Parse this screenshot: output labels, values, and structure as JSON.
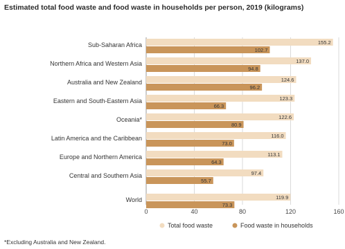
{
  "title": "Estimated total food waste and food waste in households per person, 2019 (kilograms)",
  "footnote": "*Excluding Australia and New Zealand.",
  "colors": {
    "total": "#f2dcc0",
    "household": "#c9955a"
  },
  "chart_data": {
    "type": "bar",
    "orientation": "horizontal",
    "title": "Estimated total food waste and food waste in households per person, 2019 (kilograms)",
    "xlabel": "",
    "ylabel": "",
    "xlim": [
      0,
      160
    ],
    "xticks": [
      0,
      40,
      80,
      120,
      160
    ],
    "grid": true,
    "legend": "bottom-right",
    "categories": [
      "Sub-Saharan Africa",
      "Northern Africa and Western Asia",
      "Australia and New Zealand",
      "Eastern and South-Eastern Asia",
      "Oceania*",
      "Latin America and the Caribbean",
      "Europe and Northern America",
      "Central and Southern Asia",
      "World"
    ],
    "series": [
      {
        "name": "Total food waste",
        "values": [
          155.2,
          137.0,
          124.6,
          123.3,
          122.6,
          116.0,
          113.1,
          97.4,
          119.9
        ]
      },
      {
        "name": "Food waste in households",
        "values": [
          102.7,
          94.8,
          96.2,
          66.3,
          80.9,
          73.0,
          64.3,
          55.7,
          73.3
        ]
      }
    ]
  }
}
